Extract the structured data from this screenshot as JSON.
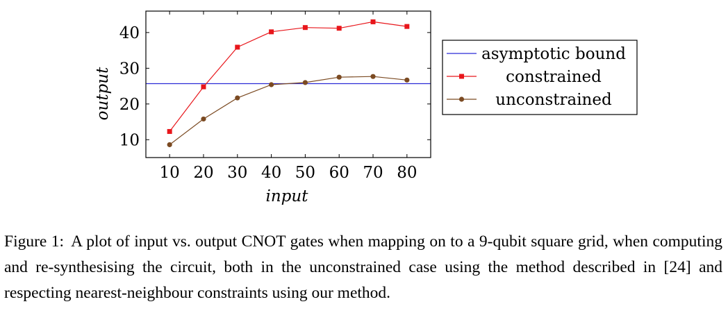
{
  "chart_data": {
    "type": "line",
    "title": "",
    "xlabel": "input",
    "ylabel": "output",
    "xlim": [
      3,
      87
    ],
    "ylim": [
      5,
      46
    ],
    "xticks": [
      10,
      20,
      30,
      40,
      50,
      60,
      70,
      80
    ],
    "yticks": [
      10,
      20,
      30,
      40
    ],
    "grid": false,
    "legend_position": "outside-right",
    "x": [
      10,
      20,
      30,
      40,
      50,
      60,
      70,
      80
    ],
    "series": [
      {
        "name": "asymptotic bound",
        "kind": "hline",
        "y": 25.7,
        "color": "#2b2bd6",
        "marker": "none"
      },
      {
        "name": "constrained",
        "values": [
          12.3,
          24.8,
          35.9,
          40.2,
          41.4,
          41.2,
          43.0,
          41.7
        ],
        "color": "#e8161b",
        "marker": "square"
      },
      {
        "name": "unconstrained",
        "values": [
          8.6,
          15.8,
          21.7,
          25.4,
          26.0,
          27.5,
          27.7,
          26.7
        ],
        "color": "#7b4a22",
        "marker": "circle"
      }
    ]
  },
  "caption": {
    "label": "Figure 1:",
    "text": "A plot of input vs. output CNOT gates when mapping on to a 9-qubit square grid, when computing and re-synthesising the circuit, both in the unconstrained case using the method described in [24] and respecting nearest-neighbour constraints using our method."
  }
}
